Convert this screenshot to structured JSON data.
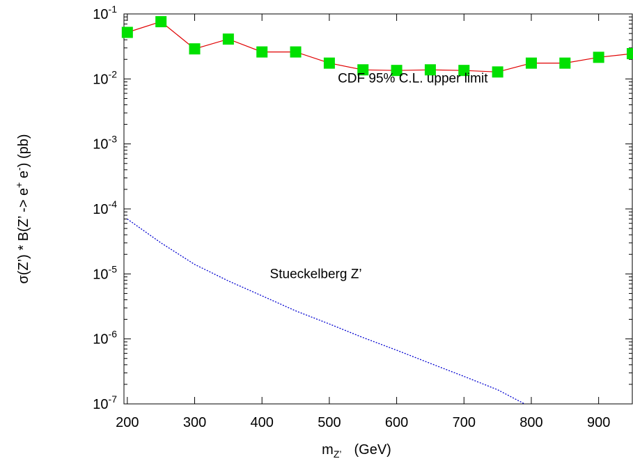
{
  "chart_data": {
    "type": "line",
    "title": "",
    "xlabel": {
      "base": "m",
      "sub": "Z’",
      "unit": "(GeV)"
    },
    "ylabel": {
      "prefix": "σ(Z’) * B(Z’ -> e",
      "sup1": "+",
      "middle": " e",
      "sup2": "-",
      "suffix": ")   (pb)"
    },
    "xlim": [
      195,
      950
    ],
    "ylim": [
      1e-07,
      0.1
    ],
    "yscale": "log",
    "grid": false,
    "x_ticks": [
      200,
      300,
      400,
      500,
      600,
      700,
      800,
      900
    ],
    "y_ticks": [
      {
        "value": 1e-07,
        "base": "10",
        "exp": "-7"
      },
      {
        "value": 1e-06,
        "base": "10",
        "exp": "-6"
      },
      {
        "value": 1e-05,
        "base": "10",
        "exp": "-5"
      },
      {
        "value": 0.0001,
        "base": "10",
        "exp": "-4"
      },
      {
        "value": 0.001,
        "base": "10",
        "exp": "-3"
      },
      {
        "value": 0.01,
        "base": "10",
        "exp": "-2"
      },
      {
        "value": 0.1,
        "base": "10",
        "exp": "-1"
      }
    ],
    "series": [
      {
        "name": "CDF 95% C.L. upper limit",
        "style": "line-markers",
        "line_color": "#e00000",
        "marker_color": "#00e000",
        "x": [
          200,
          250,
          300,
          350,
          400,
          450,
          500,
          550,
          600,
          650,
          700,
          750,
          800,
          850,
          900,
          950
        ],
        "y": [
          0.052,
          0.076,
          0.029,
          0.041,
          0.026,
          0.026,
          0.0175,
          0.0138,
          0.0135,
          0.0138,
          0.0135,
          0.0128,
          0.0175,
          0.0175,
          0.0215,
          0.0245
        ]
      },
      {
        "name": "Stueckelberg Z’",
        "style": "dotted",
        "line_color": "#0000d0",
        "x": [
          200,
          250,
          300,
          350,
          400,
          450,
          500,
          550,
          600,
          650,
          700,
          750,
          790
        ],
        "y": [
          7e-05,
          3e-05,
          1.4e-05,
          7.8e-06,
          4.6e-06,
          2.7e-06,
          1.7e-06,
          1.05e-06,
          6.7e-07,
          4.2e-07,
          2.65e-07,
          1.65e-07,
          1e-07
        ]
      }
    ],
    "annotations": [
      {
        "text": "CDF 95% C.L. upper limit",
        "x": 624,
        "y": 0.0088
      },
      {
        "text": "Stueckelberg Z’",
        "x": 480,
        "y": 8.6e-06
      }
    ]
  }
}
